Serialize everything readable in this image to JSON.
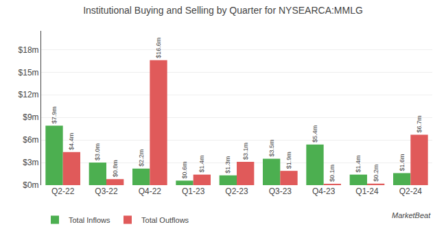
{
  "chart_data": {
    "type": "bar",
    "title": "Institutional Buying and Selling by Quarter for NYSEARCA:MMLG",
    "categories": [
      "Q2-22",
      "Q3-22",
      "Q4-22",
      "Q1-23",
      "Q2-23",
      "Q3-23",
      "Q4-23",
      "Q1-24",
      "Q2-24"
    ],
    "series": [
      {
        "name": "Total Inflows",
        "color": "#4caf50",
        "values": [
          7.9,
          3.0,
          2.2,
          0.6,
          1.3,
          3.5,
          5.4,
          1.4,
          1.6
        ],
        "value_labels": [
          "$7.9m",
          "$3.0m",
          "$2.2m",
          "$0.6m",
          "$1.3m",
          "$3.5m",
          "$5.4m",
          "$1.4m",
          "$1.6m"
        ]
      },
      {
        "name": "Total Outflows",
        "color": "#e05a5a",
        "values": [
          4.4,
          0.8,
          16.6,
          1.4,
          3.1,
          1.9,
          0.1,
          0.2,
          6.7
        ],
        "value_labels": [
          "$4.4m",
          "$0.8m",
          "$16.6m",
          "$1.4m",
          "$3.1m",
          "$1.9m",
          "$0.1m",
          "$0.2m",
          "$6.7m"
        ]
      }
    ],
    "ylim": [
      0,
      20.5
    ],
    "yticks": [
      {
        "value": 0,
        "label": "$0m"
      },
      {
        "value": 3,
        "label": "$3m"
      },
      {
        "value": 6,
        "label": "$6m"
      },
      {
        "value": 9,
        "label": "$9m"
      },
      {
        "value": 12,
        "label": "$12m"
      },
      {
        "value": 15,
        "label": "$15m"
      },
      {
        "value": 18,
        "label": "$18m"
      }
    ],
    "grid": true,
    "legend": "lower left",
    "data_labels": true,
    "annotations": [
      "MarketBeat"
    ]
  }
}
